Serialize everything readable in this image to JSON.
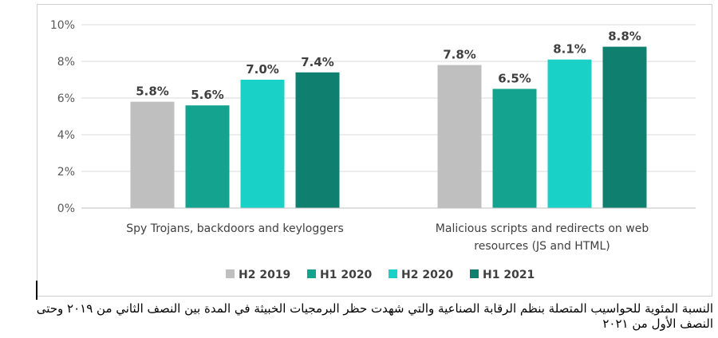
{
  "chart_data": {
    "type": "bar",
    "categories": [
      [
        "Spy Trojans, backdoors and keyloggers"
      ],
      [
        "Malicious scripts and redirects on web",
        "resources (JS and HTML)"
      ]
    ],
    "series": [
      {
        "name": "H2 2019",
        "color": "#bfbfbf",
        "values": [
          5.8,
          7.8
        ],
        "labels": [
          "5.8%",
          "7.8%"
        ]
      },
      {
        "name": "H1 2020",
        "color": "#13a38e",
        "values": [
          5.6,
          6.5
        ],
        "labels": [
          "5.6%",
          "6.5%"
        ]
      },
      {
        "name": "H2 2020",
        "color": "#19d1c6",
        "values": [
          7.0,
          8.1
        ],
        "labels": [
          "7.0%",
          "8.1%"
        ]
      },
      {
        "name": "H1 2021",
        "color": "#0f8070",
        "values": [
          7.4,
          8.8
        ],
        "labels": [
          "7.4%",
          "8.8%"
        ]
      }
    ],
    "y_ticks": [
      {
        "value": 0,
        "label": "0%"
      },
      {
        "value": 2,
        "label": "2%"
      },
      {
        "value": 4,
        "label": "4%"
      },
      {
        "value": 6,
        "label": "6%"
      },
      {
        "value": 8,
        "label": "8%"
      },
      {
        "value": 10,
        "label": "10%"
      }
    ],
    "ylim": [
      0,
      10
    ],
    "grid": true,
    "legend_position": "bottom",
    "title": "",
    "xlabel": "",
    "ylabel": ""
  },
  "caption": "النسبة المئوية للحواسيب المتصلة بنظم الرقابة الصناعية والتي شهدت حظر البرمجيات الخبيثة في المدة بين النصف الثاني من ٢٠١٩ وحتى النصف الأول من ٢٠٢١"
}
